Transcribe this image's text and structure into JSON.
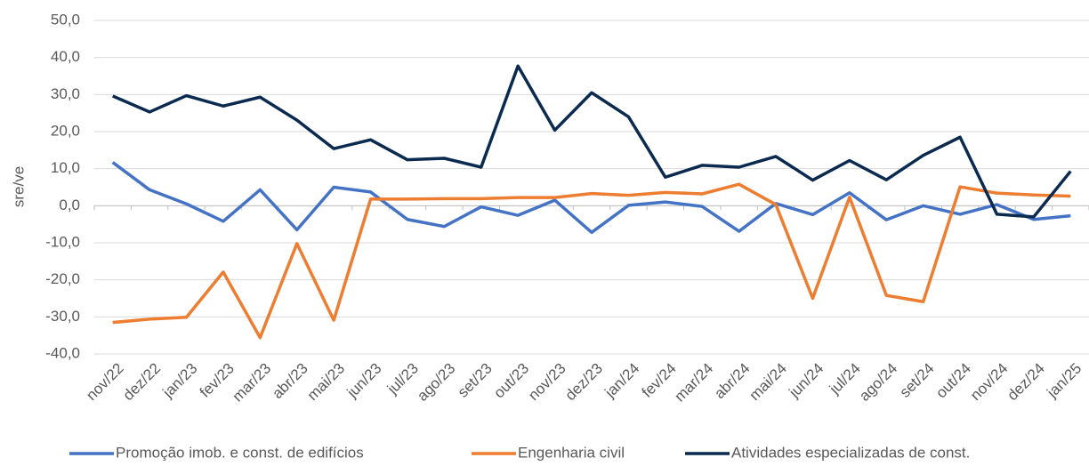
{
  "chart_data": {
    "type": "line",
    "y_label": "sre/ve",
    "categories": [
      "nov/22",
      "dez/22",
      "jan/23",
      "fev/23",
      "mar/23",
      "abr/23",
      "mai/23",
      "jun/23",
      "jul/23",
      "ago/23",
      "set/23",
      "out/23",
      "nov/23",
      "dez/23",
      "jan/24",
      "fev/24",
      "mar/24",
      "abr/24",
      "mai/24",
      "jun/24",
      "jul/24",
      "ago/24",
      "set/24",
      "out/24",
      "nov/24",
      "dez/24",
      "jan/25"
    ],
    "series": [
      {
        "name": "Promoção imob. e const. de edifícios",
        "color": "#4472c4",
        "values": [
          11.7,
          4.3,
          0.5,
          -4.2,
          4.3,
          -6.5,
          5.0,
          3.7,
          -3.7,
          -5.6,
          -0.3,
          -2.6,
          1.5,
          -7.2,
          0.1,
          1.0,
          -0.2,
          -6.9,
          0.6,
          -2.4,
          3.5,
          -3.8,
          0.0,
          -2.3,
          0.3,
          -3.7,
          -2.7
        ]
      },
      {
        "name": "Engenharia civil",
        "color": "#ed7d31",
        "values": [
          -31.5,
          -30.6,
          -30.1,
          -17.9,
          -35.6,
          -10.2,
          -30.9,
          1.8,
          1.8,
          1.9,
          1.9,
          2.2,
          2.2,
          3.3,
          2.8,
          3.6,
          3.2,
          5.8,
          0.3,
          -25.0,
          2.3,
          -24.2,
          -25.9,
          5.1,
          3.4,
          2.9,
          2.6
        ]
      },
      {
        "name": "Atividades especializadas de const.",
        "color": "#0b2a4f",
        "values": [
          29.6,
          25.3,
          29.7,
          26.9,
          29.3,
          23.1,
          15.4,
          17.8,
          12.4,
          12.8,
          10.4,
          37.7,
          20.4,
          30.5,
          24.0,
          7.7,
          10.9,
          10.4,
          13.3,
          6.9,
          12.2,
          7.0,
          13.6,
          18.5,
          -2.3,
          -3.0,
          9.3
        ]
      }
    ],
    "ylim": [
      -40,
      50
    ],
    "yticks": [
      {
        "value": -40,
        "label": "-40,0"
      },
      {
        "value": -30,
        "label": "-30,0"
      },
      {
        "value": -20,
        "label": "-20,0"
      },
      {
        "value": -10,
        "label": "-10,0"
      },
      {
        "value": 0,
        "label": "0,0"
      },
      {
        "value": 10,
        "label": "10,0"
      },
      {
        "value": 20,
        "label": "20,0"
      },
      {
        "value": 30,
        "label": "30,0"
      },
      {
        "value": 40,
        "label": "40,0"
      },
      {
        "value": 50,
        "label": "50,0"
      }
    ],
    "grid": true,
    "legend": "bottom"
  }
}
